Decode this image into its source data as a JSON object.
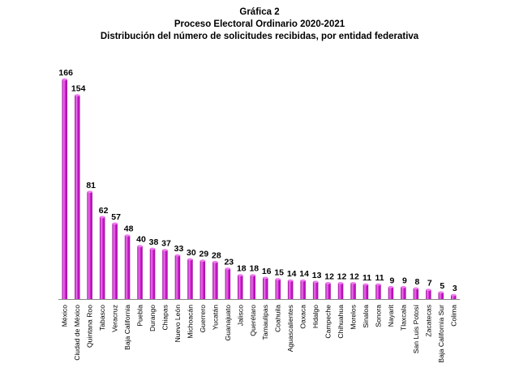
{
  "colors": {
    "bar": "#d31bd3",
    "bar_dark": "#9a0e9a",
    "bar_light": "#ef7aef",
    "axis": "#888888"
  },
  "chart_data": {
    "type": "bar",
    "title": "Gráfica 2",
    "subtitle": "Proceso Electoral Ordinario 2020-2021",
    "subtitle2": "Distribución del número de solicitudes recibidas, por entidad federativa",
    "xlabel": "",
    "ylabel": "",
    "ylim": [
      0,
      166
    ],
    "grid": false,
    "categories": [
      "México",
      "Ciudad de México",
      "Quintana Roo",
      "Tabasco",
      "Veracruz",
      "Baja California",
      "Puebla",
      "Durango",
      "Chiapas",
      "Nuevo León",
      "Michoacán",
      "Guerrero",
      "Yucatán",
      "Guanajuato",
      "Jalisco",
      "Querétaro",
      "Tamaulipas",
      "Coahuila",
      "Aguascalientes",
      "Oaxaca",
      "Hidalgo",
      "Campeche",
      "Chihuahua",
      "Morelos",
      "Sinaloa",
      "Sonora",
      "Nayarit",
      "Tlaxcala",
      "San Luis Potosí",
      "Zacatecas",
      "Baja California Sur",
      "Colima"
    ],
    "values": [
      166,
      154,
      81,
      62,
      57,
      48,
      40,
      38,
      37,
      33,
      30,
      29,
      28,
      23,
      18,
      18,
      16,
      15,
      14,
      14,
      13,
      12,
      12,
      12,
      11,
      11,
      9,
      9,
      8,
      7,
      5,
      3
    ]
  }
}
